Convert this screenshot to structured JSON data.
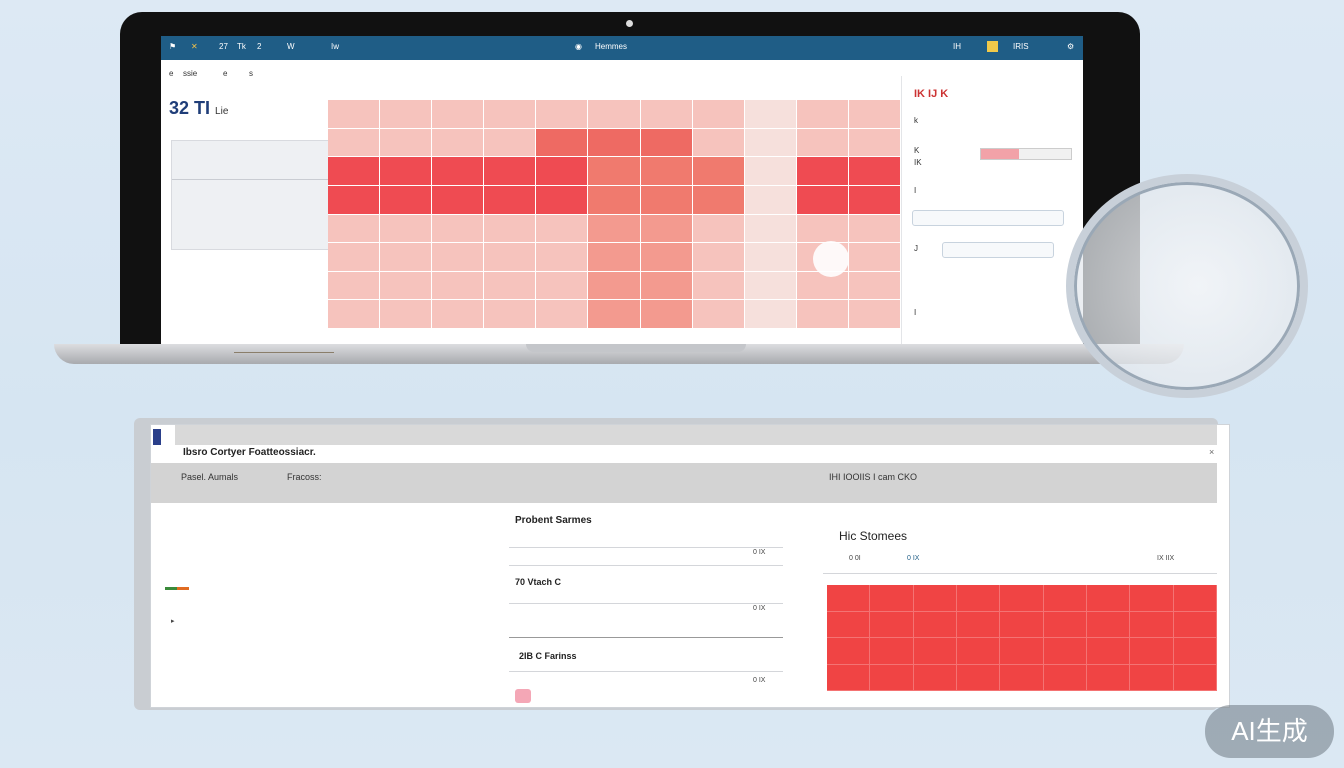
{
  "laptop": {
    "topbar": {
      "left_items": [
        "27",
        "Tk",
        "2",
        "W",
        "Iw"
      ],
      "center_label": "Hemmes",
      "right_items": [
        "IH",
        "IRIS"
      ]
    },
    "subbar_items": [
      "e",
      "ssie",
      "e",
      "s"
    ],
    "stat_value": "32 TI",
    "stat_caption": "Lie",
    "heatmap_cells": [
      "",
      "",
      "",
      "",
      "",
      "",
      "",
      "",
      "",
      "",
      "",
      "",
      "",
      "",
      "",
      "",
      "",
      "",
      "",
      "",
      "",
      "",
      "",
      "",
      "",
      "",
      "",
      "",
      "",
      "",
      "",
      "",
      "",
      "",
      "",
      "",
      "",
      "",
      "",
      "",
      "",
      "",
      "",
      "",
      "",
      "",
      "",
      "",
      "",
      "",
      "",
      "",
      "",
      "",
      "",
      "",
      "",
      "",
      "",
      "",
      "",
      "",
      "",
      "",
      "",
      "",
      "",
      "",
      "",
      "",
      "",
      "",
      "",
      "",
      "",
      "",
      "",
      "",
      "",
      "",
      "",
      "",
      "",
      "",
      "",
      "",
      "",
      ""
    ],
    "side_panel": {
      "header": "IK IJ K",
      "row1": "k",
      "row2_label": "K",
      "row3": "IK",
      "bar_label": "",
      "row4": "I",
      "row5": "J",
      "row6": "",
      "row7": "I"
    }
  },
  "panel": {
    "titlebar_text": "",
    "title": "Ibsro Cortyer Foatteossiacr.",
    "close": "×",
    "header": {
      "left_label": "Pasel. Aumals",
      "mid_label": "Fracoss:",
      "right_label": "IHI IOOIIS I cam CKO"
    },
    "col1_lines": [
      "",
      "",
      "",
      "",
      ""
    ],
    "col2": {
      "section1_title": "Probent Sarmes",
      "section1_value": "0 IX",
      "section2_title": "70 Vtach C",
      "section2_value": "0 IX",
      "section3_title": "2IB C Farinss",
      "section3_value": "0 IX"
    },
    "col3": {
      "title": "Hic Stomees",
      "left_value": "0 0I",
      "mid_value": "0 IX",
      "right_value": "IX IIX"
    }
  },
  "watermark": "AI生成",
  "colors": {
    "topbar": "#1f5d86",
    "heatmap_strong": "#ef4b52",
    "heatmap_light": "#f6c3bd",
    "red_block": "#f04444"
  }
}
